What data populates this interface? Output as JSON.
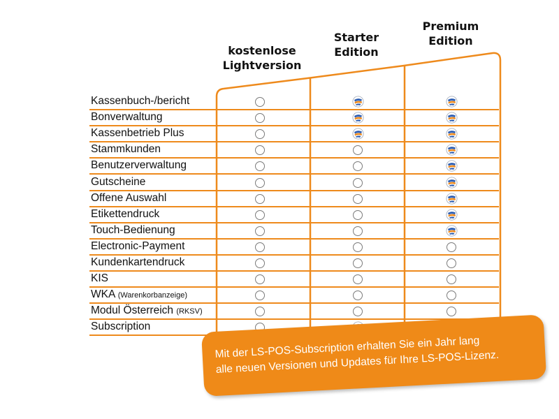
{
  "columns": [
    {
      "line1": "kostenlose",
      "line2": "Lightversion"
    },
    {
      "line1": "Starter",
      "line2": "Edition"
    },
    {
      "line1": "Premium",
      "line2": "Edition"
    }
  ],
  "rows": [
    {
      "label": "Kassenbuch-/bericht",
      "small": "",
      "cells": [
        false,
        true,
        true
      ]
    },
    {
      "label": "Bonverwaltung",
      "small": "",
      "cells": [
        false,
        true,
        true
      ]
    },
    {
      "label": "Kassenbetrieb Plus",
      "small": "",
      "cells": [
        false,
        true,
        true
      ]
    },
    {
      "label": "Stammkunden",
      "small": "",
      "cells": [
        false,
        false,
        true
      ]
    },
    {
      "label": "Benutzerverwaltung",
      "small": "",
      "cells": [
        false,
        false,
        true
      ]
    },
    {
      "label": "Gutscheine",
      "small": "",
      "cells": [
        false,
        false,
        true
      ]
    },
    {
      "label": "Offene Auswahl",
      "small": "",
      "cells": [
        false,
        false,
        true
      ]
    },
    {
      "label": "Etikettendruck",
      "small": "",
      "cells": [
        false,
        false,
        true
      ]
    },
    {
      "label": "Touch-Bedienung",
      "small": "",
      "cells": [
        false,
        false,
        true
      ]
    },
    {
      "label": "Electronic-Payment",
      "small": "",
      "cells": [
        false,
        false,
        false
      ]
    },
    {
      "label": "Kundenkartendruck",
      "small": "",
      "cells": [
        false,
        false,
        false
      ]
    },
    {
      "label": "KIS",
      "small": "",
      "cells": [
        false,
        false,
        false
      ]
    },
    {
      "label": "WKA",
      "small": "(Warenkorbanzeige)",
      "cells": [
        false,
        false,
        false
      ]
    },
    {
      "label": "Modul Österreich",
      "small": "(RKSV)",
      "cells": [
        false,
        false,
        false
      ]
    },
    {
      "label": "Subscription",
      "small": "",
      "cells": [
        false,
        true,
        true
      ]
    }
  ],
  "callout": {
    "line1": "Mit der LS-POS-Subscription erhalten Sie ein Jahr lang",
    "line2": "alle neuen Versionen und Updates für Ihre LS-POS-Lizenz."
  },
  "colors": {
    "accent": "#ee8a1c",
    "callout": "#ef8a18",
    "badge_blue": "#2f5fb3"
  },
  "icons": {
    "included": "edition-badge-icon",
    "not_included": "empty-circle-icon"
  }
}
